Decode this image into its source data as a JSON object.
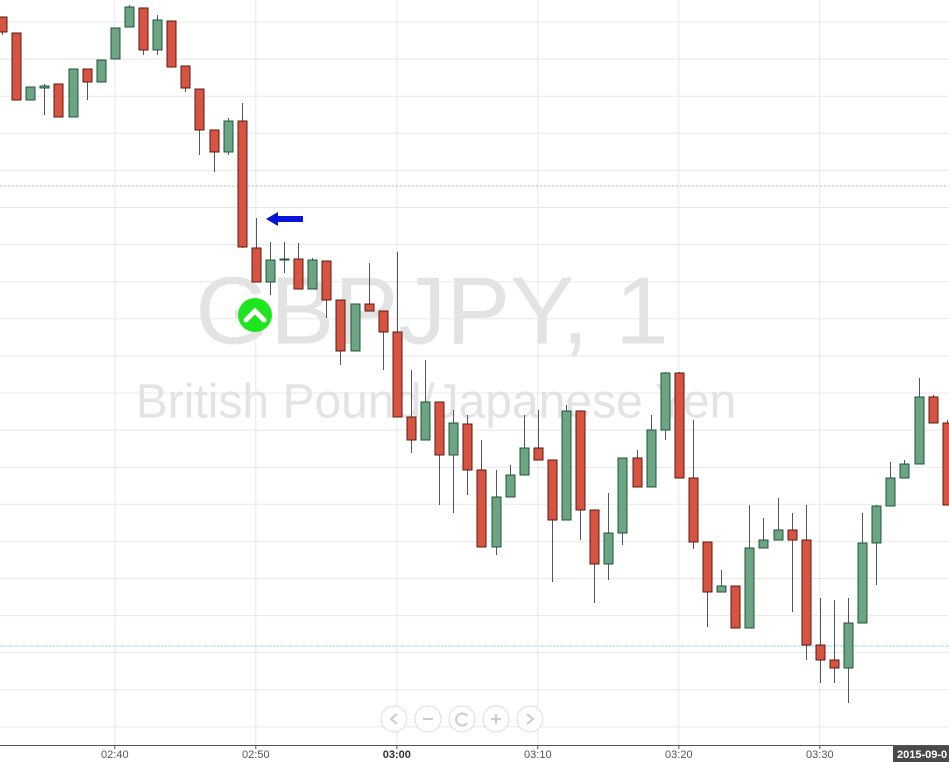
{
  "chart_data": {
    "type": "candlestick",
    "title": "GBPJPY, 1",
    "subtitle": "British Pound/Japanese Yen",
    "date_label": "2015-09-0",
    "categories": [
      null,
      null,
      null,
      null,
      null,
      null,
      null,
      null,
      "02:40",
      null,
      null,
      null,
      null,
      null,
      null,
      null,
      null,
      null,
      "02:50",
      null,
      null,
      null,
      null,
      null,
      null,
      null,
      null,
      null,
      "03:00",
      null,
      null,
      null,
      null,
      null,
      null,
      null,
      null,
      null,
      "03:10",
      null,
      null,
      null,
      null,
      null,
      null,
      null,
      null,
      null,
      "03:20",
      null,
      null,
      null,
      null,
      null,
      null,
      null,
      null,
      null,
      "03:30",
      null,
      null,
      null,
      null,
      null,
      null,
      null,
      null,
      null
    ],
    "open": [
      728,
      712,
      645,
      657,
      661,
      628,
      676,
      663,
      686,
      718,
      737,
      695,
      724,
      679,
      656,
      615,
      593,
      624,
      497,
      463,
      486,
      486,
      456,
      484,
      445,
      394,
      441,
      434,
      413,
      328,
      305,
      343,
      290,
      321,
      275,
      198,
      248,
      270,
      297,
      285,
      225,
      334,
      235,
      181,
      212,
      287,
      258,
      315,
      372,
      267,
      203,
      153,
      159,
      117,
      197,
      205,
      215,
      205,
      100,
      85,
      77,
      122,
      202,
      239,
      267,
      281,
      348,
      322
    ],
    "high": [
      728,
      712,
      658,
      661,
      661,
      676,
      676,
      685,
      717,
      740,
      737,
      730,
      724,
      679,
      656,
      615,
      627,
      642,
      527,
      503,
      503,
      502,
      487,
      484,
      445,
      441,
      482,
      434,
      493,
      375,
      385,
      343,
      335,
      330,
      305,
      275,
      280,
      330,
      335,
      285,
      340,
      334,
      235,
      252,
      287,
      295,
      330,
      373,
      373,
      325,
      203,
      175,
      159,
      240,
      227,
      247,
      232,
      240,
      147,
      145,
      147,
      232,
      240,
      283,
      285,
      367,
      350,
      325
    ],
    "low": [
      710,
      645,
      645,
      630,
      628,
      628,
      645,
      663,
      686,
      718,
      690,
      690,
      678,
      653,
      590,
      573,
      590,
      497,
      463,
      450,
      472,
      456,
      456,
      427,
      380,
      394,
      434,
      375,
      328,
      292,
      305,
      240,
      232,
      250,
      198,
      190,
      248,
      270,
      285,
      163,
      225,
      205,
      142,
      165,
      200,
      258,
      258,
      305,
      267,
      196,
      118,
      153,
      117,
      117,
      197,
      205,
      133,
      85,
      62,
      62,
      42,
      122,
      160,
      239,
      267,
      281,
      322,
      240
    ],
    "close": [
      713,
      645,
      658,
      659,
      628,
      676,
      663,
      685,
      717,
      738,
      695,
      725,
      678,
      657,
      615,
      593,
      624,
      498,
      463,
      485,
      486,
      456,
      485,
      445,
      394,
      441,
      434,
      413,
      328,
      305,
      343,
      290,
      322,
      275,
      198,
      248,
      270,
      297,
      285,
      225,
      334,
      235,
      181,
      212,
      287,
      258,
      315,
      372,
      267,
      203,
      153,
      159,
      117,
      197,
      205,
      215,
      205,
      100,
      85,
      77,
      122,
      202,
      239,
      267,
      281,
      348,
      322,
      240
    ],
    "up_color": "#6ba583",
    "down_color": "#d75442",
    "ylim": [
      0,
      745
    ],
    "grid": true
  }
}
